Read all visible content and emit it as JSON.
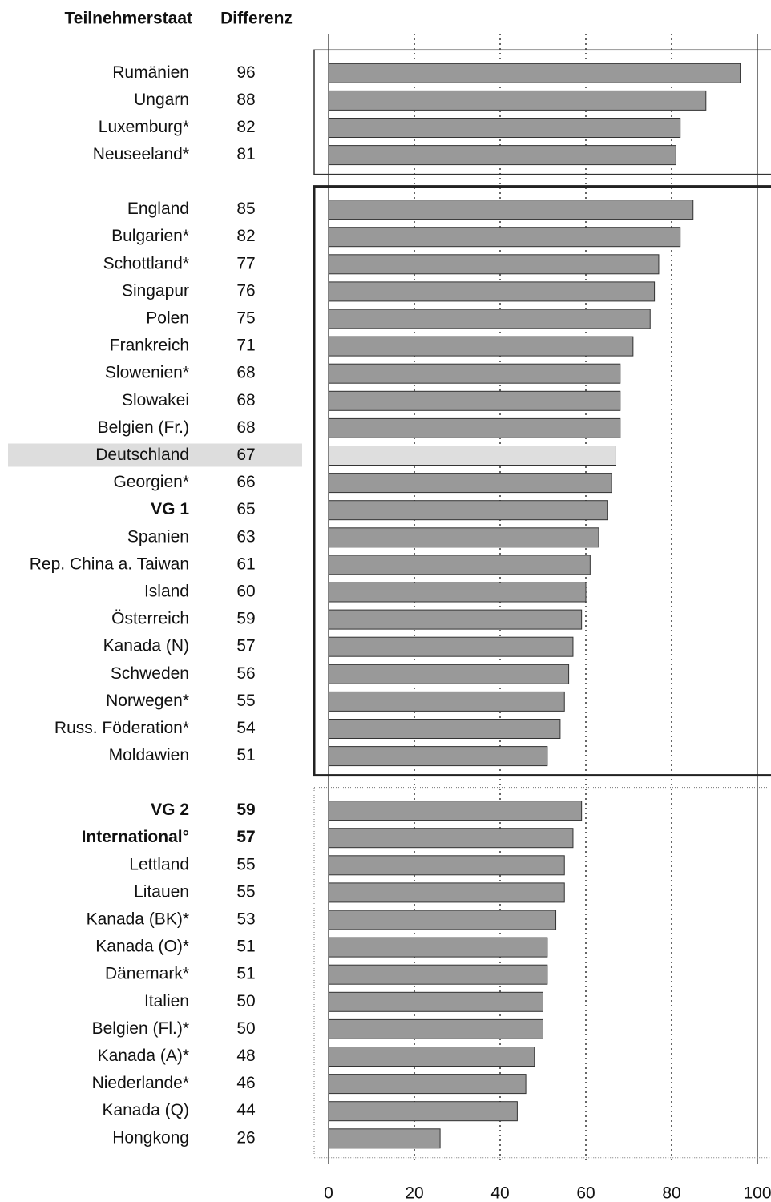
{
  "chart_data": {
    "type": "bar",
    "orientation": "horizontal",
    "category_header": "Teilnehmerstaat",
    "value_header": "Differenz",
    "color": "#999999",
    "highlight_color": "#dedede",
    "label_highlight_color": "#dddddd",
    "xlim": [
      0,
      100
    ],
    "xticks": [
      0,
      20,
      40,
      60,
      80,
      100
    ],
    "grid": true,
    "groups": [
      {
        "frame": "thin",
        "categories": [
          "Rumänien",
          "Ungarn",
          "Luxemburg*",
          "Neuseeland*"
        ],
        "values": [
          96,
          88,
          82,
          81
        ],
        "bold": [],
        "highlight": []
      },
      {
        "frame": "thick",
        "categories": [
          "England",
          "Bulgarien*",
          "Schottland*",
          "Singapur",
          "Polen",
          "Frankreich",
          "Slowenien*",
          "Slowakei",
          "Belgien (Fr.)",
          "Deutschland",
          "Georgien*",
          "VG 1",
          "Spanien",
          "Rep. China a. Taiwan",
          "Island",
          "Österreich",
          "Kanada (N)",
          "Schweden",
          "Norwegen*",
          "Russ. Föderation*",
          "Moldawien"
        ],
        "values": [
          85,
          82,
          77,
          76,
          75,
          71,
          68,
          68,
          68,
          67,
          66,
          65,
          63,
          61,
          60,
          59,
          57,
          56,
          55,
          54,
          51
        ],
        "bold": [
          11
        ],
        "highlight": [
          9
        ]
      },
      {
        "frame": "dotted",
        "categories": [
          "VG 2",
          "International°",
          "Lettland",
          "Litauen",
          "Kanada (BK)*",
          "Kanada (O)*",
          "Dänemark*",
          "Italien",
          "Belgien (Fl.)*",
          "Kanada (A)*",
          "Niederlande*",
          "Kanada (Q)",
          "Hongkong"
        ],
        "values": [
          59,
          57,
          55,
          55,
          53,
          51,
          51,
          50,
          50,
          48,
          46,
          44,
          26
        ],
        "bold": [
          0,
          1
        ],
        "highlight": []
      }
    ]
  }
}
